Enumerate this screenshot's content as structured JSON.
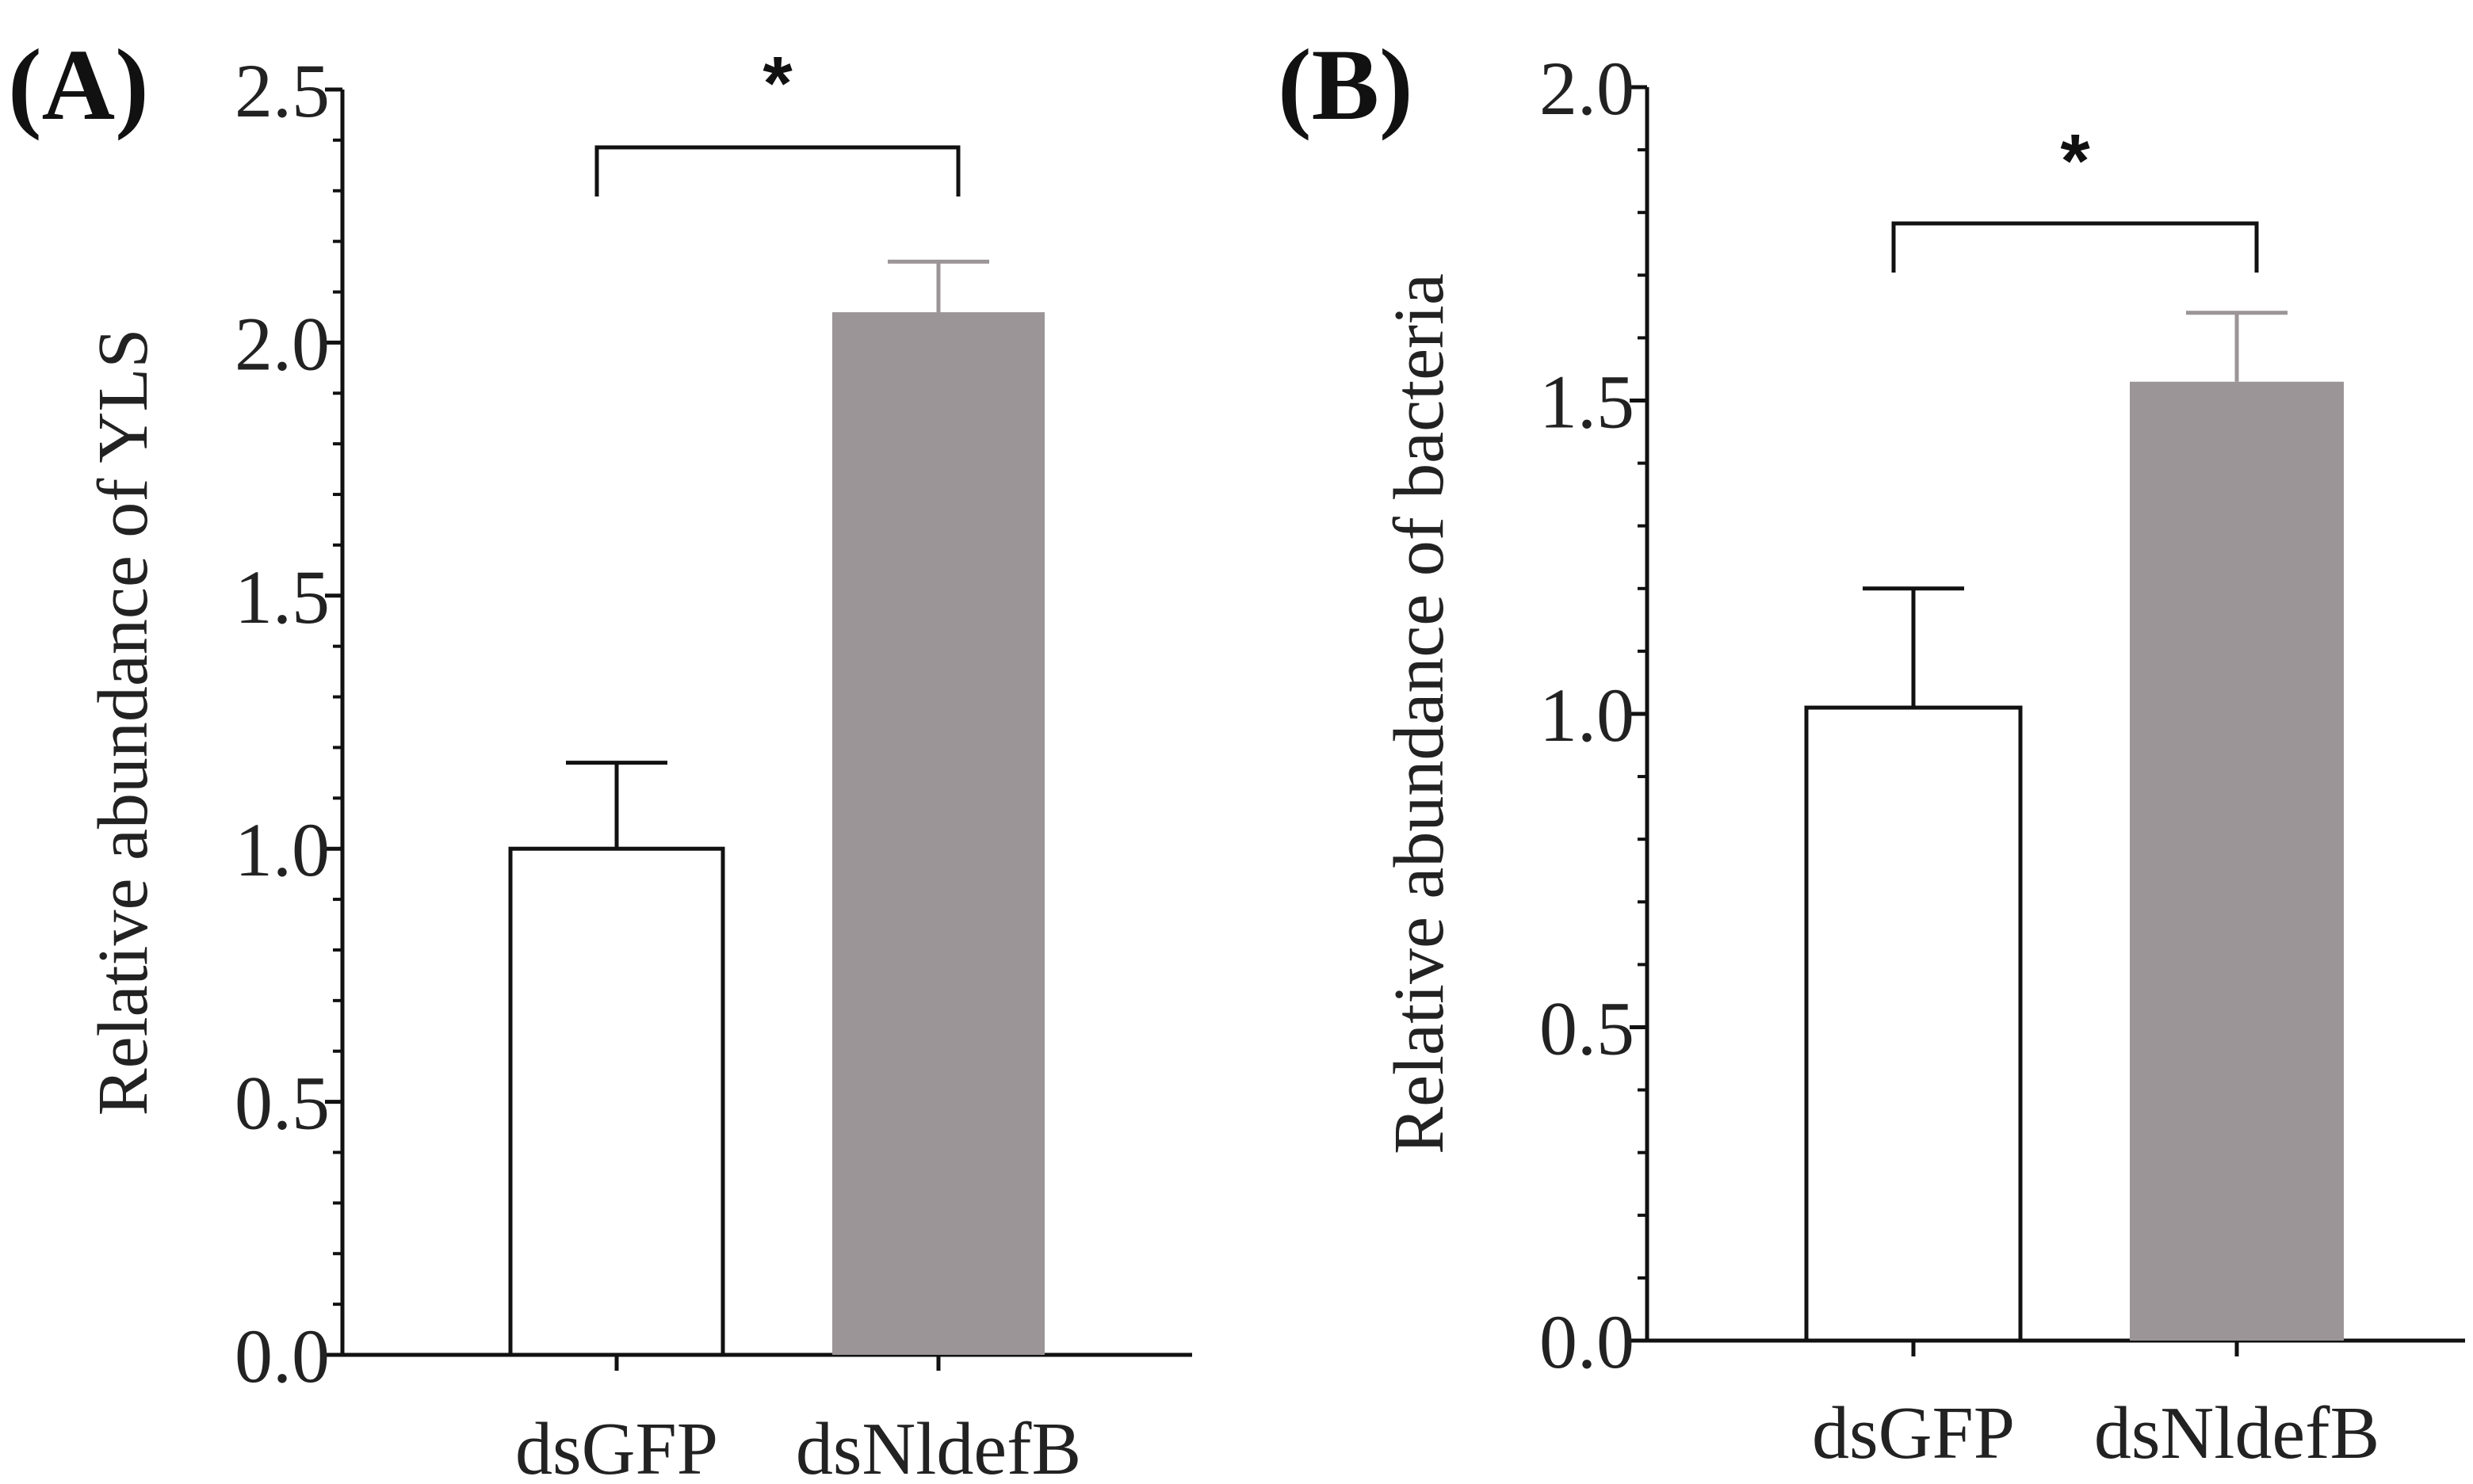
{
  "chart_data": [
    {
      "panel_label": "(A)",
      "type": "bar",
      "ylabel": "Relative abundance of YLS",
      "ylim": [
        0,
        2.5
      ],
      "yticks": [
        "0.0",
        "0.5",
        "1.0",
        "1.5",
        "2.0",
        "2.5"
      ],
      "categories": [
        "dsGFP",
        "dsNldefB"
      ],
      "values": [
        1.0,
        2.06
      ],
      "errors": [
        0.17,
        0.1
      ],
      "bar_colors": [
        "#ffffff",
        "#9b9597"
      ],
      "error_colors": [
        "#111111",
        "#9b9597"
      ],
      "significance": "*"
    },
    {
      "panel_label": "(B)",
      "type": "bar",
      "ylabel": "Relative abundance of  bacteria",
      "ylim": [
        0,
        2.0
      ],
      "yticks": [
        "0.0",
        "0.5",
        "1.0",
        "1.5",
        "2.0"
      ],
      "categories": [
        "dsGFP",
        "dsNldefB"
      ],
      "values": [
        1.01,
        1.53
      ],
      "errors": [
        0.19,
        0.11
      ],
      "bar_colors": [
        "#ffffff",
        "#9b9597"
      ],
      "error_colors": [
        "#111111",
        "#9b9597"
      ],
      "significance": "*"
    }
  ]
}
